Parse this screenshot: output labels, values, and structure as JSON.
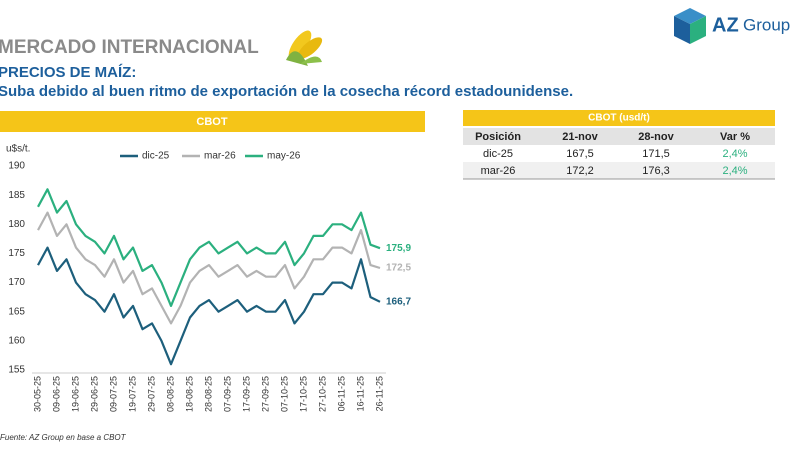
{
  "header": {
    "title": "MERCADO INTERNACIONAL",
    "subtitle": "PRECIOS DE MAÍZ:",
    "headline": "Suba debido al buen ritmo de exportación de la cosecha récord estadounidense.",
    "logo_main": "AZ",
    "logo_sub": "Group"
  },
  "chart_data": {
    "type": "line",
    "title": "CBOT",
    "ylabel": "u$s/t.",
    "x": [
      "30-05-25",
      null,
      "09-06-25",
      null,
      "19-06-25",
      null,
      "29-06-25",
      null,
      "09-07-25",
      null,
      "19-07-25",
      null,
      "29-07-25",
      null,
      "08-08-25",
      null,
      "18-08-25",
      null,
      "28-08-25",
      null,
      "07-09-25",
      null,
      "17-09-25",
      null,
      "27-09-25",
      null,
      "07-10-25",
      null,
      "17-10-25",
      null,
      "27-10-25",
      null,
      "06-11-25",
      null,
      "16-11-25",
      null,
      "26-11-25"
    ],
    "series": [
      {
        "name": "dic-25",
        "color": "#1d5f7c",
        "values": [
          173,
          176,
          172,
          174,
          170,
          168,
          167,
          165,
          168,
          164,
          166,
          162,
          163,
          160,
          156,
          160,
          164,
          166,
          167,
          165,
          166,
          167,
          165,
          166,
          165,
          165,
          167,
          163,
          165,
          168,
          168,
          170,
          170,
          169,
          174,
          167.5,
          166.7
        ],
        "value_labels": [
          null,
          null,
          null,
          null,
          null,
          null,
          null,
          null,
          null,
          null,
          null,
          null,
          null,
          null,
          null,
          null,
          null,
          null,
          null,
          null,
          null,
          null,
          null,
          null,
          null,
          null,
          null,
          null,
          null,
          null,
          null,
          null,
          null,
          null,
          null,
          null,
          "166,7"
        ]
      },
      {
        "name": "mar-26",
        "color": "#b3b3b3",
        "values": [
          179,
          182,
          178,
          180,
          176,
          174,
          173,
          171,
          174,
          170,
          172,
          168,
          169,
          166,
          163,
          166,
          170,
          172,
          173,
          171,
          172,
          173,
          171,
          172,
          171,
          171,
          173,
          169,
          171,
          174,
          174,
          176,
          176,
          175,
          179,
          173,
          172.5
        ],
        "value_labels": [
          null,
          null,
          null,
          null,
          null,
          null,
          null,
          null,
          null,
          null,
          null,
          null,
          null,
          null,
          null,
          null,
          null,
          null,
          null,
          null,
          null,
          null,
          null,
          null,
          null,
          null,
          null,
          null,
          null,
          null,
          null,
          null,
          null,
          null,
          null,
          null,
          "172,5"
        ]
      },
      {
        "name": "may-26",
        "color": "#2bb07f",
        "values": [
          183,
          186,
          182,
          184,
          180,
          178,
          177,
          175,
          178,
          174,
          176,
          172,
          173,
          170,
          166,
          170,
          174,
          176,
          177,
          175,
          176,
          177,
          175,
          176,
          175,
          175,
          177,
          173,
          175,
          178,
          178,
          180,
          180,
          179,
          182,
          176.5,
          175.9
        ],
        "value_labels": [
          null,
          null,
          null,
          null,
          null,
          null,
          null,
          null,
          null,
          null,
          null,
          null,
          null,
          null,
          null,
          null,
          null,
          null,
          null,
          null,
          null,
          null,
          null,
          null,
          null,
          null,
          null,
          null,
          null,
          null,
          null,
          null,
          null,
          null,
          null,
          null,
          "175,9"
        ]
      }
    ],
    "ylim": [
      155,
      190
    ],
    "yticks": [
      155,
      160,
      165,
      170,
      175,
      180,
      185,
      190
    ],
    "grid": false
  },
  "table": {
    "title": "CBOT (usd/t)",
    "columns": [
      "Posición",
      "21-nov",
      "28-nov",
      "Var %"
    ],
    "rows": [
      [
        "dic-25",
        "167,5",
        "171,5",
        "2,4%"
      ],
      [
        "mar-26",
        "172,2",
        "176,3",
        "2,4%"
      ]
    ]
  },
  "source": "Fuente: AZ Group en base a CBOT"
}
